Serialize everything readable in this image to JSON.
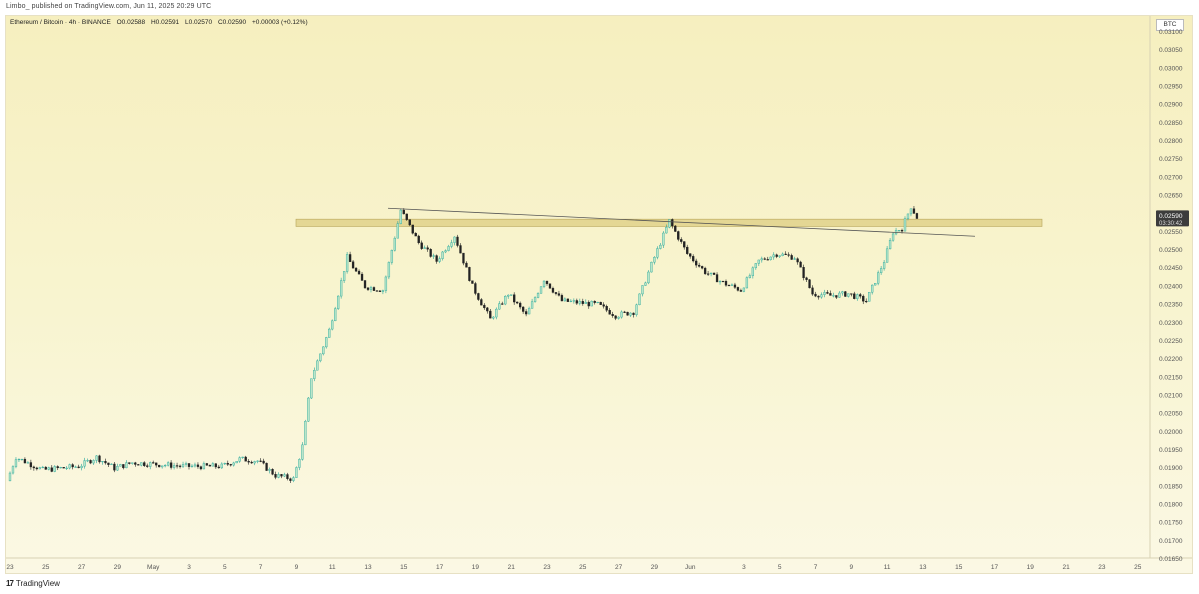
{
  "header": {
    "published": "Limbo_ published on TradingView.com, Jun 11, 2025 20:29 UTC"
  },
  "symbol_line": {
    "name": "Ethereum / Bitcoin · 4h · BINANCE",
    "open": "O0.02588",
    "high": "H0.02591",
    "low": "L0.02570",
    "close": "C0.02590",
    "change": "+0.00003 (+0.12%)"
  },
  "currency": "BTC",
  "price_label": {
    "price": "0.02590",
    "countdown": "03:30:42"
  },
  "footer": {
    "brand": "TradingView",
    "logo_glyph": "17"
  },
  "colors": {
    "up": "#26a69a",
    "up_body": "#b9e6c9",
    "down": "#222222",
    "zone": "#dccb7c",
    "trendline": "#555555",
    "price_label_bg": "#3c3c3c"
  },
  "chart_data": {
    "type": "candlestick",
    "title": "Ethereum / Bitcoin · 4h · BINANCE",
    "ylim": [
      0.0165,
      0.0311
    ],
    "y_ticks": [
      "0.03100",
      "0.03050",
      "0.03000",
      "0.02950",
      "0.02900",
      "0.02850",
      "0.02800",
      "0.02750",
      "0.02700",
      "0.02650",
      "0.02600",
      "0.02550",
      "0.02500",
      "0.02450",
      "0.02400",
      "0.02350",
      "0.02300",
      "0.02250",
      "0.02200",
      "0.02150",
      "0.02100",
      "0.02050",
      "0.02000",
      "0.01950",
      "0.01900",
      "0.01850",
      "0.01800",
      "0.01750",
      "0.01700",
      "0.01650"
    ],
    "x_ticks": [
      "23",
      "25",
      "27",
      "29",
      "May",
      "3",
      "5",
      "7",
      "9",
      "11",
      "13",
      "15",
      "17",
      "19",
      "21",
      "23",
      "25",
      "27",
      "29",
      "Jun",
      "3",
      "5",
      "7",
      "9",
      "11",
      "13",
      "15",
      "17",
      "19",
      "21",
      "23",
      "25"
    ],
    "x_start_day": "Apr 23",
    "last_price": 0.0259,
    "resistance_zone": [
      0.02565,
      0.02585
    ],
    "trendline": {
      "from": [
        "Apr 14 (May 14)",
        0.02615
      ],
      "to": [
        "Jun 15",
        0.02538
      ]
    },
    "price_path": [
      {
        "date": "Apr 23",
        "close": 0.01865
      },
      {
        "date": "Apr 23 12h",
        "close": 0.0193
      },
      {
        "date": "Apr 25",
        "close": 0.01895
      },
      {
        "date": "Apr 27",
        "close": 0.01905
      },
      {
        "date": "Apr 28",
        "close": 0.0193
      },
      {
        "date": "Apr 29",
        "close": 0.019
      },
      {
        "date": "Apr 30",
        "close": 0.01915
      },
      {
        "date": "May 2",
        "close": 0.01905
      },
      {
        "date": "May 4",
        "close": 0.01905
      },
      {
        "date": "May 5",
        "close": 0.01925
      },
      {
        "date": "May 6",
        "close": 0.0192
      },
      {
        "date": "May 7",
        "close": 0.0188
      },
      {
        "date": "May 8",
        "close": 0.0187
      },
      {
        "date": "May 8 12h",
        "close": 0.0196
      },
      {
        "date": "May 9",
        "close": 0.0215
      },
      {
        "date": "May 10",
        "close": 0.0228
      },
      {
        "date": "May 11",
        "close": 0.0248
      },
      {
        "date": "May 12",
        "close": 0.024
      },
      {
        "date": "May 13",
        "close": 0.0239
      },
      {
        "date": "May 14",
        "close": 0.0261
      },
      {
        "date": "May 15",
        "close": 0.0252
      },
      {
        "date": "May 16",
        "close": 0.0247
      },
      {
        "date": "May 17",
        "close": 0.0254
      },
      {
        "date": "May 18",
        "close": 0.024
      },
      {
        "date": "May 19",
        "close": 0.0231
      },
      {
        "date": "May 20",
        "close": 0.0238
      },
      {
        "date": "May 21",
        "close": 0.0232
      },
      {
        "date": "May 22",
        "close": 0.0242
      },
      {
        "date": "May 23",
        "close": 0.0236
      },
      {
        "date": "May 25",
        "close": 0.0235
      },
      {
        "date": "May 26",
        "close": 0.0232
      },
      {
        "date": "May 27",
        "close": 0.0233
      },
      {
        "date": "May 28",
        "close": 0.0246
      },
      {
        "date": "May 29",
        "close": 0.0258
      },
      {
        "date": "May 30",
        "close": 0.0249
      },
      {
        "date": "May 31",
        "close": 0.0244
      },
      {
        "date": "Jun 1",
        "close": 0.0241
      },
      {
        "date": "Jun 2",
        "close": 0.0239
      },
      {
        "date": "Jun 3",
        "close": 0.0247
      },
      {
        "date": "Jun 4",
        "close": 0.0249
      },
      {
        "date": "Jun 5",
        "close": 0.0248
      },
      {
        "date": "Jun 6",
        "close": 0.0238
      },
      {
        "date": "Jun 7",
        "close": 0.02375
      },
      {
        "date": "Jun 8",
        "close": 0.0238
      },
      {
        "date": "Jun 9",
        "close": 0.0236
      },
      {
        "date": "Jun 10",
        "close": 0.0247
      },
      {
        "date": "Jun 10 12h",
        "close": 0.0255
      },
      {
        "date": "Jun 11",
        "close": 0.0256
      },
      {
        "date": "Jun 11 12h",
        "close": 0.0262
      },
      {
        "date": "Jun 11 20h",
        "close": 0.0259
      }
    ]
  }
}
